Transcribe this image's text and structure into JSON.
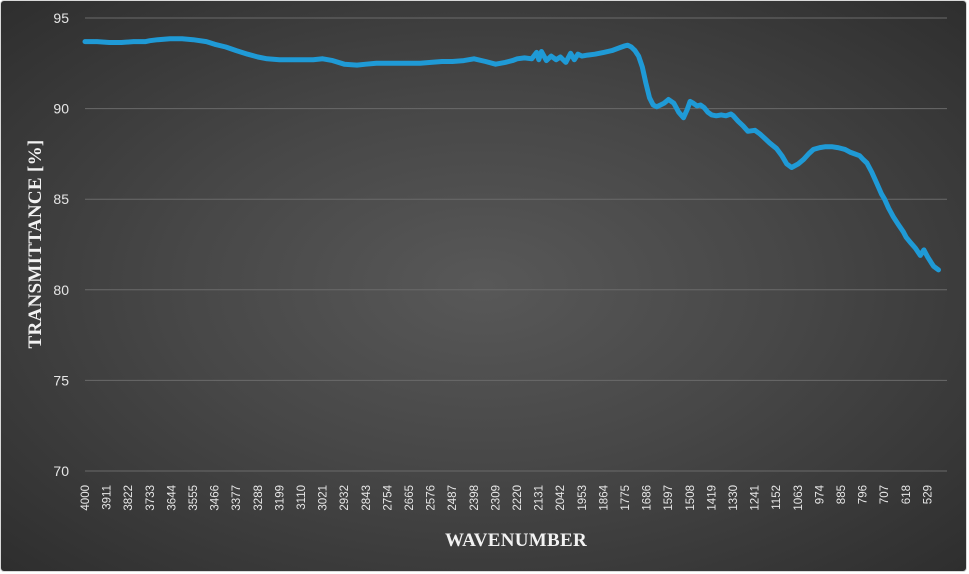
{
  "chart_data": {
    "type": "line",
    "title": "",
    "xlabel": "WAVENUMBER",
    "ylabel": "TRANSMITTANCE [%]",
    "ylim": [
      70,
      95
    ],
    "yticks": [
      70,
      75,
      80,
      85,
      90,
      95
    ],
    "xlim": [
      4000,
      450
    ],
    "x_reversed": true,
    "xticks": [
      "4000",
      "3911",
      "3822",
      "3733",
      "3644",
      "3555",
      "3466",
      "3377",
      "3288",
      "3199",
      "3110",
      "3021",
      "2932",
      "2843",
      "2754",
      "2665",
      "2576",
      "2487",
      "2398",
      "2309",
      "2220",
      "2131",
      "2042",
      "1953",
      "1864",
      "1775",
      "1686",
      "1597",
      "1508",
      "1419",
      "1330",
      "1241",
      "1152",
      "1063",
      "974",
      "885",
      "796",
      "707",
      "618",
      "529"
    ],
    "grid": true,
    "legend": "none",
    "series_color": "#1f9ad6",
    "series": [
      {
        "x": [
          4000,
          3950,
          3900,
          3850,
          3800,
          3750,
          3733,
          3700,
          3650,
          3600,
          3555,
          3500,
          3466,
          3420,
          3377,
          3330,
          3288,
          3250,
          3199,
          3150,
          3110,
          3060,
          3021,
          2980,
          2932,
          2880,
          2843,
          2800,
          2754,
          2700,
          2665,
          2620,
          2576,
          2530,
          2487,
          2440,
          2398,
          2350,
          2309,
          2270,
          2240,
          2220,
          2190,
          2160,
          2140,
          2131,
          2120,
          2100,
          2080,
          2060,
          2042,
          2020,
          2000,
          1985,
          1970,
          1953,
          1930,
          1900,
          1864,
          1830,
          1800,
          1780,
          1765,
          1750,
          1735,
          1720,
          1705,
          1690,
          1675,
          1660,
          1645,
          1630,
          1615,
          1597,
          1575,
          1555,
          1535,
          1520,
          1508,
          1495,
          1480,
          1465,
          1450,
          1435,
          1419,
          1400,
          1380,
          1360,
          1340,
          1330,
          1310,
          1290,
          1270,
          1241,
          1220,
          1200,
          1180,
          1152,
          1130,
          1110,
          1090,
          1063,
          1040,
          1020,
          1000,
          974,
          950,
          925,
          900,
          885,
          870,
          850,
          830,
          810,
          796,
          780,
          760,
          740,
          720,
          707,
          690,
          670,
          650,
          630,
          618,
          600,
          580,
          560,
          545,
          529,
          515,
          505,
          495,
          485
        ],
        "y": [
          93.7,
          93.7,
          93.65,
          93.65,
          93.7,
          93.7,
          93.75,
          93.8,
          93.85,
          93.85,
          93.8,
          93.7,
          93.55,
          93.4,
          93.2,
          93.0,
          92.85,
          92.75,
          92.7,
          92.7,
          92.7,
          92.7,
          92.75,
          92.65,
          92.45,
          92.4,
          92.45,
          92.5,
          92.5,
          92.5,
          92.5,
          92.5,
          92.55,
          92.6,
          92.6,
          92.65,
          92.75,
          92.6,
          92.45,
          92.55,
          92.65,
          92.75,
          92.8,
          92.75,
          93.1,
          92.7,
          93.15,
          92.65,
          92.9,
          92.7,
          92.85,
          92.55,
          93.05,
          92.7,
          93.0,
          92.9,
          92.95,
          93.0,
          93.1,
          93.2,
          93.35,
          93.45,
          93.5,
          93.4,
          93.2,
          92.9,
          92.3,
          91.4,
          90.6,
          90.2,
          90.1,
          90.2,
          90.3,
          90.5,
          90.3,
          89.8,
          89.5,
          89.95,
          90.4,
          90.3,
          90.15,
          90.2,
          90.05,
          89.8,
          89.65,
          89.6,
          89.65,
          89.6,
          89.7,
          89.6,
          89.3,
          89.05,
          88.75,
          88.8,
          88.6,
          88.35,
          88.1,
          87.8,
          87.4,
          86.95,
          86.75,
          86.95,
          87.2,
          87.5,
          87.75,
          87.85,
          87.9,
          87.9,
          87.85,
          87.8,
          87.75,
          87.6,
          87.5,
          87.4,
          87.2,
          87.0,
          86.5,
          85.9,
          85.3,
          85.0,
          84.5,
          84.0,
          83.6,
          83.2,
          82.9,
          82.6,
          82.3,
          81.9,
          82.2,
          81.8,
          81.5,
          81.3,
          81.2,
          81.1
        ]
      }
    ]
  }
}
